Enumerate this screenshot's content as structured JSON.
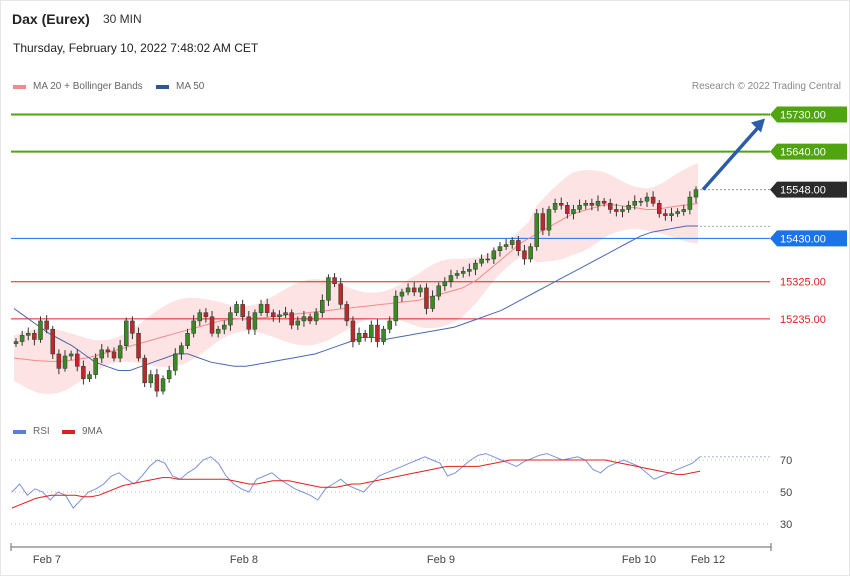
{
  "header": {
    "title": "Dax (Eurex)",
    "timeframe": "30 MIN",
    "datetime": "Thursday, February 10, 2022 7:48:02 AM CET",
    "credit": "Research © 2022 Trading Central"
  },
  "legend_main": [
    {
      "label": "MA 20 + Bollinger Bands",
      "color": "#f28b8b"
    },
    {
      "label": "MA 50",
      "color": "#2f5597"
    }
  ],
  "legend_rsi": [
    {
      "label": "RSI",
      "color": "#5b7fd6"
    },
    {
      "label": "9MA",
      "color": "#e02020"
    }
  ],
  "chart_data": [
    {
      "type": "candlestick",
      "title": "Dax (Eurex)",
      "ylim": [
        14990,
        15770
      ],
      "x_ticks": [
        "Feb 7",
        "Feb 8",
        "Feb 9",
        "Feb 10",
        "Feb 12"
      ],
      "levels": [
        {
          "value": 15730.0,
          "label": "15730.00",
          "color": "#4fa40f",
          "style": "resistance"
        },
        {
          "value": 15640.0,
          "label": "15640.00",
          "color": "#4fa40f",
          "style": "resistance"
        },
        {
          "value": 15548.0,
          "label": "15548.00",
          "color": "#2b2b2b",
          "style": "last"
        },
        {
          "value": 15430.0,
          "label": "15430.00",
          "color": "#1a73e8",
          "style": "pivot"
        },
        {
          "value": 15325.0,
          "label": "15325.00",
          "color": "#e02020",
          "style": "support"
        },
        {
          "value": 15235.0,
          "label": "15235.00",
          "color": "#e02020",
          "style": "support"
        }
      ],
      "close_series": [
        15180,
        15195,
        15200,
        15185,
        15230,
        15210,
        15150,
        15115,
        15145,
        15150,
        15120,
        15090,
        15100,
        15140,
        15160,
        15155,
        15140,
        15170,
        15230,
        15200,
        15140,
        15080,
        15100,
        15060,
        15090,
        15110,
        15150,
        15170,
        15200,
        15230,
        15250,
        15240,
        15200,
        15210,
        15220,
        15250,
        15270,
        15240,
        15210,
        15250,
        15270,
        15250,
        15240,
        15245,
        15250,
        15220,
        15230,
        15240,
        15230,
        15250,
        15280,
        15335,
        15320,
        15270,
        15230,
        15180,
        15200,
        15190,
        15220,
        15180,
        15210,
        15230,
        15290,
        15300,
        15310,
        15300,
        15310,
        15260,
        15290,
        15315,
        15325,
        15340,
        15345,
        15350,
        15355,
        15370,
        15380,
        15380,
        15400,
        15410,
        15415,
        15425,
        15400,
        15380,
        15410,
        15490,
        15450,
        15500,
        15515,
        15510,
        15490,
        15500,
        15510,
        15515,
        15510,
        15520,
        15515,
        15500,
        15495,
        15500,
        15510,
        15520,
        15520,
        15530,
        15515,
        15490,
        15485,
        15490,
        15495,
        15500,
        15530,
        15548
      ],
      "ma20_series": [
        15140,
        15138,
        15136,
        15134,
        15133,
        15132,
        15132,
        15133,
        15135,
        15138,
        15141,
        15145,
        15150,
        15155,
        15160,
        15165,
        15170,
        15175,
        15180,
        15185,
        15190,
        15195,
        15200,
        15205,
        15210,
        15215,
        15220,
        15225,
        15230,
        15232,
        15234,
        15235,
        15236,
        15237,
        15238,
        15240,
        15242,
        15244,
        15246,
        15248,
        15250,
        15252,
        15254,
        15256,
        15258,
        15260,
        15262,
        15264,
        15266,
        15268,
        15270,
        15272,
        15274,
        15276,
        15278,
        15280,
        15285,
        15290,
        15295,
        15300,
        15305,
        15310,
        15320,
        15330,
        15345,
        15360,
        15375,
        15390,
        15405,
        15420,
        15430,
        15440,
        15450,
        15460,
        15470,
        15480,
        15490,
        15495,
        15500,
        15505,
        15510,
        15512,
        15510,
        15508,
        15505,
        15503,
        15500,
        15500,
        15502,
        15505,
        15508,
        15510,
        15512,
        15515
      ],
      "ma50_series": [
        15260,
        15240,
        15220,
        15200,
        15185,
        15170,
        15150,
        15130,
        15120,
        15110,
        15110,
        15120,
        15130,
        15140,
        15150,
        15150,
        15140,
        15130,
        15125,
        15120,
        15120,
        15125,
        15130,
        15135,
        15140,
        15145,
        15150,
        15160,
        15170,
        15180,
        15190,
        15190,
        15185,
        15190,
        15195,
        15200,
        15205,
        15210,
        15215,
        15225,
        15235,
        15245,
        15255,
        15270,
        15285,
        15300,
        15315,
        15330,
        15345,
        15360,
        15375,
        15390,
        15405,
        15420,
        15435,
        15445,
        15450,
        15455,
        15460,
        15460
      ],
      "bands": {
        "upper_approx": 15560,
        "lower_approx": 15060
      },
      "projection": {
        "from": 15548,
        "to": 15730
      }
    },
    {
      "type": "line",
      "title": "RSI",
      "ylim": [
        20,
        80
      ],
      "y_ticks": [
        70,
        50,
        30
      ],
      "series": [
        {
          "name": "RSI",
          "values": [
            50,
            55,
            48,
            52,
            50,
            45,
            50,
            48,
            40,
            45,
            50,
            52,
            55,
            60,
            62,
            58,
            55,
            60,
            66,
            70,
            68,
            60,
            58,
            62,
            65,
            70,
            72,
            68,
            60,
            55,
            52,
            50,
            58,
            60,
            62,
            58,
            55,
            52,
            50,
            48,
            45,
            52,
            55,
            58,
            54,
            52,
            50,
            55,
            60,
            62,
            64,
            66,
            68,
            70,
            72,
            70,
            68,
            60,
            62,
            66,
            70,
            73,
            74,
            72,
            70,
            68,
            66,
            69,
            71,
            73,
            74,
            72,
            70,
            71,
            72,
            70,
            64,
            62,
            66,
            68,
            70,
            68,
            66,
            62,
            58,
            60,
            62,
            64,
            66,
            68,
            72
          ]
        },
        {
          "name": "9MA",
          "values": [
            40,
            42,
            44,
            46,
            47,
            48,
            48,
            48,
            48,
            47,
            47,
            48,
            50,
            52,
            54,
            55,
            56,
            57,
            58,
            59,
            59,
            58,
            58,
            58,
            58,
            58,
            58,
            58,
            57,
            56,
            55,
            55,
            56,
            57,
            57,
            57,
            56,
            55,
            54,
            53,
            53,
            53,
            54,
            55,
            55,
            56,
            57,
            58,
            59,
            60,
            61,
            62,
            63,
            64,
            65,
            66,
            66,
            66,
            66,
            66,
            67,
            68,
            69,
            70,
            70,
            70,
            70,
            70,
            70,
            70,
            70,
            70,
            70,
            70,
            70,
            70,
            69,
            68,
            67,
            66,
            65,
            64,
            63,
            62,
            61,
            61,
            62,
            63
          ]
        }
      ]
    }
  ]
}
